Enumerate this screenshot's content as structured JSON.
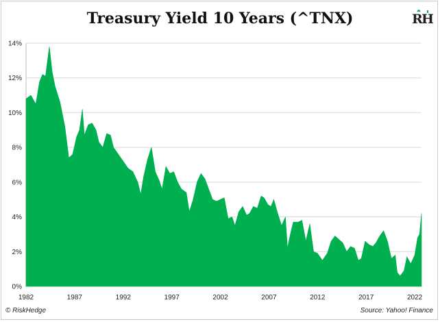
{
  "chart_data": {
    "type": "area",
    "title": "Treasury Yield 10 Years (^TNX)",
    "xlabel": "",
    "ylabel": "",
    "color": "#00b050",
    "ylim": [
      0,
      14
    ],
    "xlim": [
      1982,
      2022.7
    ],
    "grid": true,
    "yticks": [
      "0%",
      "2%",
      "4%",
      "6%",
      "8%",
      "10%",
      "12%",
      "14%"
    ],
    "xticks": [
      "1982",
      "1987",
      "1992",
      "1997",
      "2002",
      "2007",
      "2012",
      "2017",
      "2022"
    ],
    "x": [
      1982.0,
      1982.5,
      1983.0,
      1983.4,
      1983.7,
      1984.0,
      1984.4,
      1984.7,
      1985.0,
      1985.5,
      1986.0,
      1986.4,
      1986.8,
      1987.2,
      1987.5,
      1987.8,
      1988.0,
      1988.4,
      1988.8,
      1989.2,
      1989.5,
      1989.9,
      1990.3,
      1990.7,
      1991.0,
      1991.5,
      1992.0,
      1992.5,
      1993.0,
      1993.5,
      1993.8,
      1994.1,
      1994.5,
      1994.9,
      1995.3,
      1995.7,
      1996.0,
      1996.4,
      1996.8,
      1997.2,
      1997.6,
      1998.0,
      1998.5,
      1998.8,
      1999.2,
      1999.6,
      2000.0,
      2000.4,
      2000.8,
      2001.2,
      2001.6,
      2002.0,
      2002.4,
      2002.8,
      2003.2,
      2003.5,
      2003.9,
      2004.3,
      2004.7,
      2005.0,
      2005.4,
      2005.8,
      2006.2,
      2006.5,
      2006.9,
      2007.2,
      2007.5,
      2007.9,
      2008.3,
      2008.7,
      2008.9,
      2009.2,
      2009.5,
      2010.0,
      2010.4,
      2010.8,
      2011.2,
      2011.6,
      2012.0,
      2012.5,
      2013.0,
      2013.4,
      2013.8,
      2014.2,
      2014.6,
      2015.0,
      2015.4,
      2015.8,
      2016.2,
      2016.5,
      2016.9,
      2017.3,
      2017.7,
      2018.0,
      2018.4,
      2018.8,
      2019.2,
      2019.6,
      2020.0,
      2020.2,
      2020.5,
      2020.9,
      2021.2,
      2021.6,
      2022.0,
      2022.3,
      2022.5,
      2022.7
    ],
    "y": [
      10.8,
      11.0,
      10.5,
      11.8,
      12.2,
      12.1,
      13.8,
      12.3,
      11.5,
      10.6,
      9.2,
      7.4,
      7.6,
      8.6,
      9.0,
      10.2,
      8.7,
      9.3,
      9.4,
      9.0,
      8.3,
      8.0,
      8.8,
      8.7,
      8.0,
      7.6,
      7.2,
      6.8,
      6.6,
      6.0,
      5.3,
      6.3,
      7.3,
      8.0,
      6.6,
      6.1,
      5.6,
      6.9,
      6.5,
      6.6,
      6.0,
      5.6,
      5.4,
      4.3,
      5.0,
      6.0,
      6.5,
      6.2,
      5.6,
      5.0,
      4.9,
      5.0,
      5.1,
      3.9,
      4.0,
      3.5,
      4.3,
      4.6,
      4.1,
      4.2,
      4.6,
      4.5,
      5.2,
      5.1,
      4.7,
      4.6,
      5.0,
      4.2,
      3.5,
      4.0,
      2.2,
      3.0,
      3.7,
      3.7,
      3.8,
      2.6,
      3.6,
      2.0,
      1.9,
      1.5,
      1.9,
      2.6,
      2.9,
      2.7,
      2.5,
      2.0,
      2.3,
      2.2,
      1.5,
      1.6,
      2.6,
      2.4,
      2.3,
      2.5,
      2.9,
      3.2,
      2.6,
      1.6,
      1.8,
      0.8,
      0.6,
      0.9,
      1.7,
      1.3,
      1.8,
      2.8,
      3.0,
      4.2
    ]
  },
  "footer": {
    "left": "© RiskHedge",
    "right": "Source: Yahoo! Finance"
  },
  "logo_text": "RH"
}
